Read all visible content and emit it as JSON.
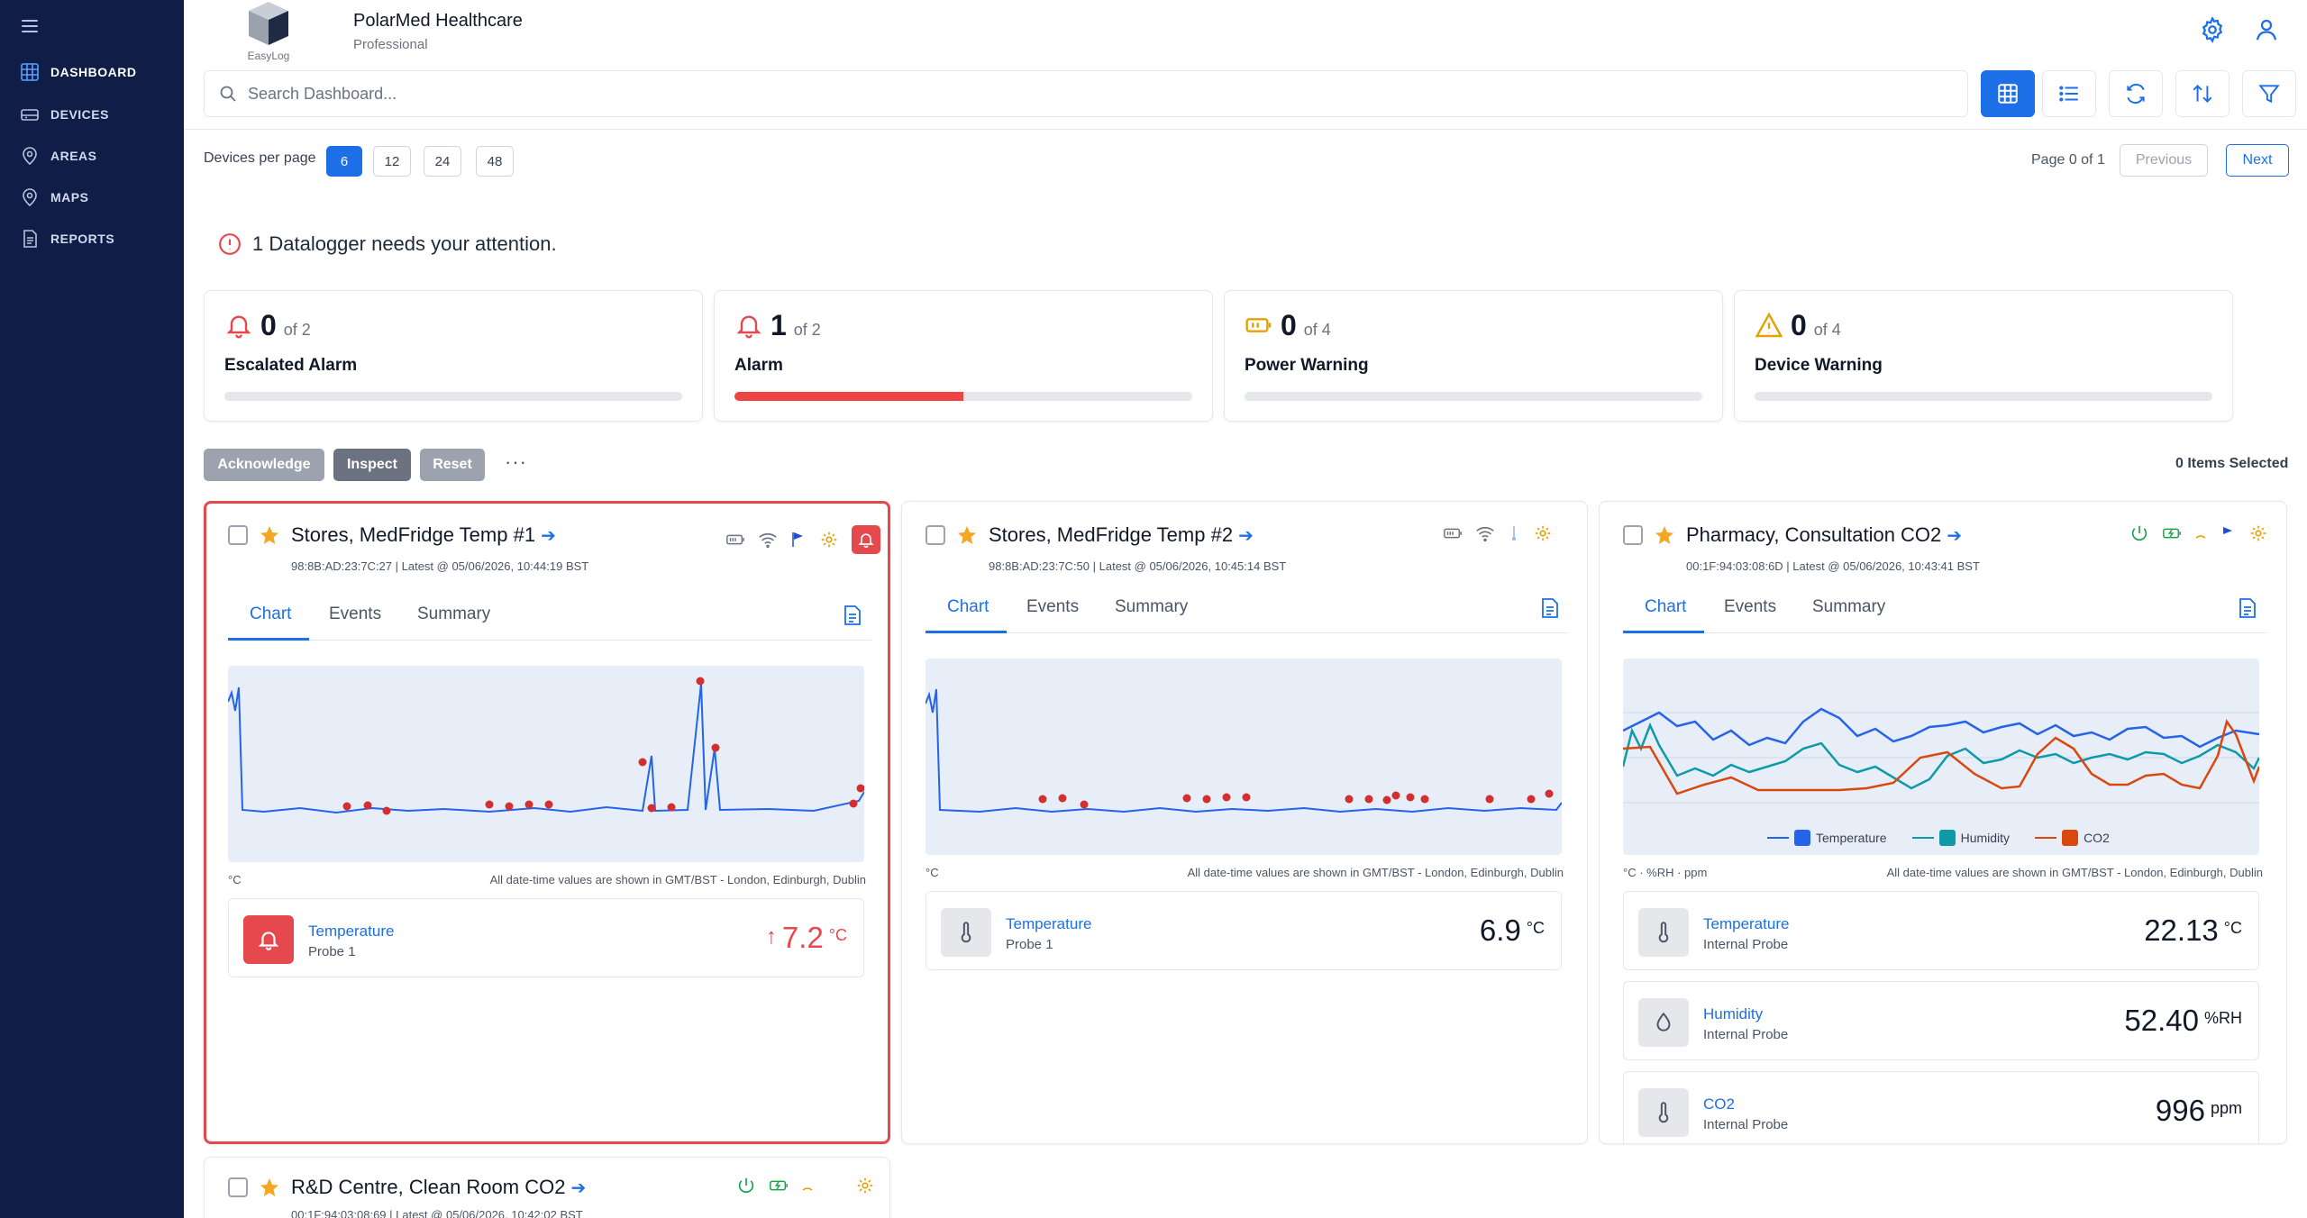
{
  "nav": {
    "items": [
      {
        "label": "DASHBOARD",
        "icon": "grid-icon"
      },
      {
        "label": "DEVICES",
        "icon": "devices-icon"
      },
      {
        "label": "AREAS",
        "icon": "location-pin-icon"
      },
      {
        "label": "MAPS",
        "icon": "map-pin-icon"
      },
      {
        "label": "REPORTS",
        "icon": "document-icon"
      }
    ],
    "active": "DASHBOARD"
  },
  "header": {
    "logo_text": "EasyLog",
    "org_name": "PolarMed Healthcare",
    "org_tier": "Professional"
  },
  "search": {
    "placeholder": "Search Dashboard..."
  },
  "pagination": {
    "per_page_label": "Devices per page",
    "options": [
      "6",
      "12",
      "24",
      "48"
    ],
    "selected": "6",
    "page_info": "Page 0 of 1",
    "previous": "Previous",
    "next": "Next"
  },
  "attention": {
    "message": "1 Datalogger needs your attention."
  },
  "stats": [
    {
      "count": "0",
      "of": "of 2",
      "label": "Escalated Alarm",
      "progress": 0
    },
    {
      "count": "1",
      "of": "of 2",
      "label": "Alarm",
      "progress": 0.5
    },
    {
      "count": "0",
      "of": "of 4",
      "label": "Power Warning",
      "progress": 0
    },
    {
      "count": "0",
      "of": "of 4",
      "label": "Device Warning",
      "progress": 0
    }
  ],
  "actions": {
    "acknowledge": "Acknowledge",
    "inspect": "Inspect",
    "reset": "Reset",
    "more": "···",
    "selected": "0 Items Selected"
  },
  "colors": {
    "accent": "#1d6fe8",
    "alarm": "#e5484d",
    "sidebar": "#0f1d47",
    "temperature": "#2563eb",
    "humidity": "#0e9aa7",
    "co2": "#d9480f"
  },
  "cards": [
    {
      "title": "Stores, MedFridge Temp #1",
      "meta": "98:8B:AD:23:7C:27 | Latest @ 05/06/2026, 10:44:19 BST",
      "tabs": [
        "Chart",
        "Events",
        "Summary"
      ],
      "unit": "°C",
      "tz": "All date-time values are shown in GMT/BST - London, Edinburgh, Dublin",
      "readings": [
        {
          "name": "Temperature",
          "sub": "Probe 1",
          "value": "7.2",
          "unit": "°C"
        }
      ]
    },
    {
      "title": "Stores, MedFridge Temp #2",
      "meta": "98:8B:AD:23:7C:50 | Latest @ 05/06/2026, 10:45:14 BST",
      "tabs": [
        "Chart",
        "Events",
        "Summary"
      ],
      "unit": "°C",
      "tz": "All date-time values are shown in GMT/BST - London, Edinburgh, Dublin",
      "readings": [
        {
          "name": "Temperature",
          "sub": "Probe 1",
          "value": "6.9",
          "unit": "°C"
        }
      ]
    },
    {
      "title": "Pharmacy, Consultation CO2",
      "meta": "00:1F:94:03:08:6D | Latest @ 05/06/2026, 10:43:41 BST",
      "tabs": [
        "Chart",
        "Events",
        "Summary"
      ],
      "unit": "°C · %RH · ppm",
      "tz": "All date-time values are shown in GMT/BST - London, Edinburgh, Dublin",
      "legend": [
        "Temperature",
        "Humidity",
        "CO2"
      ],
      "readings": [
        {
          "name": "Temperature",
          "sub": "Internal Probe",
          "value": "22.13",
          "unit": "°C"
        },
        {
          "name": "Humidity",
          "sub": "Internal Probe",
          "value": "52.40",
          "unit": "%RH"
        },
        {
          "name": "CO2",
          "sub": "Internal Probe",
          "value": "996",
          "unit": "ppm"
        }
      ]
    },
    {
      "title": "R&D Centre, Clean Room CO2",
      "meta": "00:1F:94:03:08:69 | Latest @ 05/06/2026, 10:42:02 BST"
    }
  ]
}
